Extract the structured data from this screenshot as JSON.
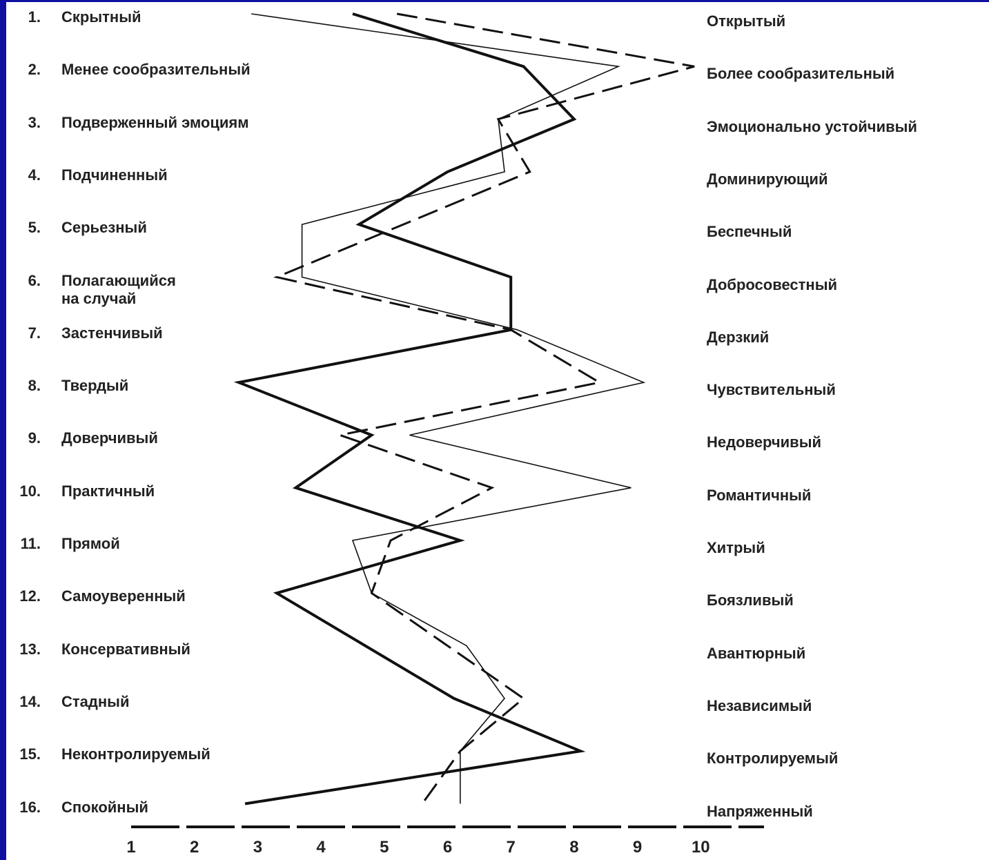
{
  "chart_data": {
    "type": "line",
    "orientation": "horizontal",
    "category_numbers": [
      "1.",
      "2.",
      "3.",
      "4.",
      "5.",
      "6.",
      "7.",
      "8.",
      "9.",
      "10.",
      "11.",
      "12.",
      "13.",
      "14.",
      "15.",
      "16."
    ],
    "categories": [
      "Скрытный",
      "Менее сообразительный",
      "Подверженный  эмоциям",
      "Подчиненный",
      "Серьезный",
      "Полагающийся\nна случай",
      "Застенчивый",
      "Твердый",
      "Доверчивый",
      "Практичный",
      "Прямой",
      "Самоуверенный",
      "Консервативный",
      "Стадный",
      "Неконтролируемый",
      "Спокойный"
    ],
    "categories_right": [
      "Открытый",
      "Более  сообразительный",
      "Эмоционально  устойчивый",
      "Доминирующий",
      "Беспечный",
      "Добросовестный",
      "Дерзкий",
      "Чувствительный",
      "Недоверчивый",
      "Романтичный",
      "Хитрый",
      "Боязливый",
      "Авантюрный",
      "Независимый",
      "Контролируемый",
      "Напряженный"
    ],
    "series": [
      {
        "color": "#111111",
        "style": "bold",
        "values": [
          4.5,
          7.2,
          8.0,
          6.0,
          4.6,
          7.0,
          7.0,
          2.7,
          4.8,
          3.6,
          6.2,
          3.3,
          4.7,
          6.1,
          8.1,
          2.8
        ]
      },
      {
        "color": "#111111",
        "style": "thin",
        "values": [
          2.9,
          8.7,
          6.8,
          6.9,
          3.7,
          3.7,
          7.1,
          9.1,
          5.4,
          8.9,
          4.5,
          4.8,
          6.3,
          6.9,
          6.2,
          6.2
        ]
      },
      {
        "color": "#111111",
        "style": "dashed",
        "values": [
          5.2,
          9.9,
          6.8,
          7.3,
          5.3,
          3.3,
          7.0,
          8.4,
          4.3,
          6.7,
          5.1,
          4.8,
          6.0,
          7.2,
          6.2,
          5.6
        ]
      }
    ],
    "xlim": [
      1,
      11
    ],
    "xticks": [
      1,
      2,
      3,
      4,
      5,
      6,
      7,
      8,
      9,
      10
    ]
  }
}
